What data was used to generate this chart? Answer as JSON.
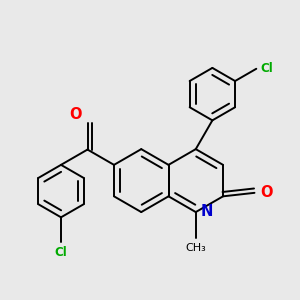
{
  "background_color": "#e9e9e9",
  "bond_color": "#000000",
  "O_color": "#ff0000",
  "N_color": "#0000cc",
  "Cl_color": "#00aa00",
  "figsize": [
    3.0,
    3.0
  ],
  "dpi": 100,
  "bond_lw": 1.4,
  "font_size": 9.5,
  "ring_r": 0.36,
  "xlim": [
    -1.6,
    1.8
  ],
  "ylim": [
    -1.2,
    1.9
  ]
}
